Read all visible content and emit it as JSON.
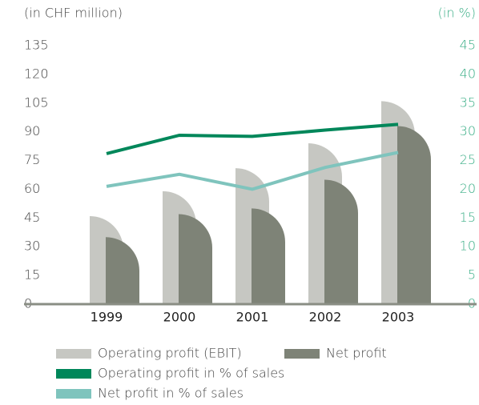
{
  "chart_data": {
    "type": "bar",
    "y_label": "(in CHF million)",
    "y2_label": "(in %)",
    "categories": [
      "1999",
      "2000",
      "2001",
      "2002",
      "2003"
    ],
    "series": [
      {
        "name": "Operating profit (EBIT)",
        "color": "#c6c7c2",
        "values": [
          46,
          59,
          71,
          84,
          106
        ]
      },
      {
        "name": "Net profit",
        "color": "#7e8377",
        "values": [
          35,
          47,
          50,
          65,
          93
        ]
      },
      {
        "name": "Operating profit in % of sales",
        "color": "#00875a",
        "axis": "y2",
        "values": [
          26.2,
          29.4,
          29.2,
          30.3,
          31.3
        ]
      },
      {
        "name": "Net profit in % of sales",
        "color": "#7fc4bd",
        "axis": "y2",
        "values": [
          20.5,
          22.6,
          20,
          23.8,
          26.4
        ]
      }
    ],
    "ylim": [
      0,
      135
    ],
    "yticks": [
      0,
      15,
      30,
      45,
      60,
      75,
      90,
      105,
      120,
      135
    ],
    "y2lim": [
      0,
      45
    ],
    "y2ticks": [
      0,
      5,
      10,
      15,
      20,
      25,
      30,
      35,
      40,
      45
    ],
    "y2_color": "#3aae86",
    "grid": false
  }
}
